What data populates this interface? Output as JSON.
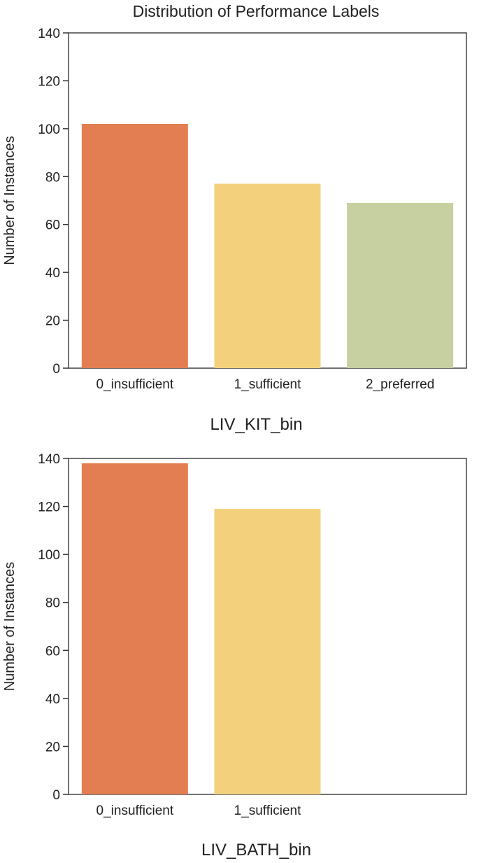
{
  "title": "Distribution of Performance Labels",
  "chart_data": [
    {
      "type": "bar",
      "categories": [
        "0_insufficient",
        "1_sufficient",
        "2_preferred"
      ],
      "values": [
        102,
        77,
        69
      ],
      "colors": [
        "#e27e51",
        "#f3d17c",
        "#c7d0a1"
      ],
      "xlabel": "LIV_KIT_bin",
      "ylabel": "Number of Instances",
      "ylim": [
        0,
        140
      ],
      "yticks": [
        0,
        20,
        40,
        60,
        80,
        100,
        120,
        140
      ],
      "grid": false,
      "legend": "none"
    },
    {
      "type": "bar",
      "categories": [
        "0_insufficient",
        "1_sufficient"
      ],
      "values": [
        138,
        119
      ],
      "colors": [
        "#e27e51",
        "#f3d17c"
      ],
      "xlabel": "LIV_BATH_bin",
      "ylabel": "Number of Instances",
      "ylim": [
        0,
        140
      ],
      "yticks": [
        0,
        20,
        40,
        60,
        80,
        100,
        120,
        140
      ],
      "grid": false,
      "legend": "none"
    }
  ]
}
